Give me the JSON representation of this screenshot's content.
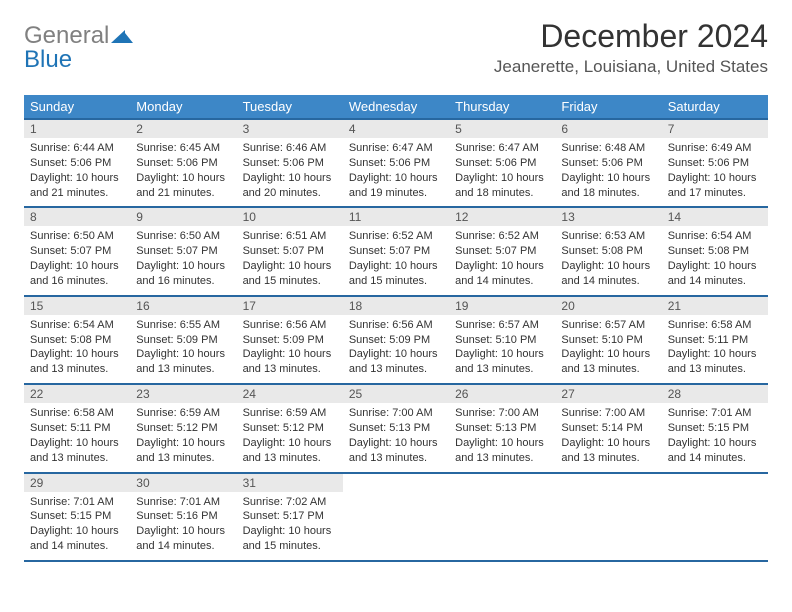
{
  "logo": {
    "line1": "General",
    "line2": "Blue"
  },
  "title": "December 2024",
  "location": "Jeanerette, Louisiana, United States",
  "colors": {
    "header_bg": "#3d87c7",
    "header_border": "#2767a0",
    "daynum_bg": "#e9e9e9",
    "text": "#333333",
    "logo_gray": "#808080",
    "logo_blue": "#1f74b6"
  },
  "weekdays": [
    "Sunday",
    "Monday",
    "Tuesday",
    "Wednesday",
    "Thursday",
    "Friday",
    "Saturday"
  ],
  "weeks": [
    [
      {
        "n": "1",
        "sr": "6:44 AM",
        "ss": "5:06 PM",
        "dl": "10 hours and 21 minutes."
      },
      {
        "n": "2",
        "sr": "6:45 AM",
        "ss": "5:06 PM",
        "dl": "10 hours and 21 minutes."
      },
      {
        "n": "3",
        "sr": "6:46 AM",
        "ss": "5:06 PM",
        "dl": "10 hours and 20 minutes."
      },
      {
        "n": "4",
        "sr": "6:47 AM",
        "ss": "5:06 PM",
        "dl": "10 hours and 19 minutes."
      },
      {
        "n": "5",
        "sr": "6:47 AM",
        "ss": "5:06 PM",
        "dl": "10 hours and 18 minutes."
      },
      {
        "n": "6",
        "sr": "6:48 AM",
        "ss": "5:06 PM",
        "dl": "10 hours and 18 minutes."
      },
      {
        "n": "7",
        "sr": "6:49 AM",
        "ss": "5:06 PM",
        "dl": "10 hours and 17 minutes."
      }
    ],
    [
      {
        "n": "8",
        "sr": "6:50 AM",
        "ss": "5:07 PM",
        "dl": "10 hours and 16 minutes."
      },
      {
        "n": "9",
        "sr": "6:50 AM",
        "ss": "5:07 PM",
        "dl": "10 hours and 16 minutes."
      },
      {
        "n": "10",
        "sr": "6:51 AM",
        "ss": "5:07 PM",
        "dl": "10 hours and 15 minutes."
      },
      {
        "n": "11",
        "sr": "6:52 AM",
        "ss": "5:07 PM",
        "dl": "10 hours and 15 minutes."
      },
      {
        "n": "12",
        "sr": "6:52 AM",
        "ss": "5:07 PM",
        "dl": "10 hours and 14 minutes."
      },
      {
        "n": "13",
        "sr": "6:53 AM",
        "ss": "5:08 PM",
        "dl": "10 hours and 14 minutes."
      },
      {
        "n": "14",
        "sr": "6:54 AM",
        "ss": "5:08 PM",
        "dl": "10 hours and 14 minutes."
      }
    ],
    [
      {
        "n": "15",
        "sr": "6:54 AM",
        "ss": "5:08 PM",
        "dl": "10 hours and 13 minutes."
      },
      {
        "n": "16",
        "sr": "6:55 AM",
        "ss": "5:09 PM",
        "dl": "10 hours and 13 minutes."
      },
      {
        "n": "17",
        "sr": "6:56 AM",
        "ss": "5:09 PM",
        "dl": "10 hours and 13 minutes."
      },
      {
        "n": "18",
        "sr": "6:56 AM",
        "ss": "5:09 PM",
        "dl": "10 hours and 13 minutes."
      },
      {
        "n": "19",
        "sr": "6:57 AM",
        "ss": "5:10 PM",
        "dl": "10 hours and 13 minutes."
      },
      {
        "n": "20",
        "sr": "6:57 AM",
        "ss": "5:10 PM",
        "dl": "10 hours and 13 minutes."
      },
      {
        "n": "21",
        "sr": "6:58 AM",
        "ss": "5:11 PM",
        "dl": "10 hours and 13 minutes."
      }
    ],
    [
      {
        "n": "22",
        "sr": "6:58 AM",
        "ss": "5:11 PM",
        "dl": "10 hours and 13 minutes."
      },
      {
        "n": "23",
        "sr": "6:59 AM",
        "ss": "5:12 PM",
        "dl": "10 hours and 13 minutes."
      },
      {
        "n": "24",
        "sr": "6:59 AM",
        "ss": "5:12 PM",
        "dl": "10 hours and 13 minutes."
      },
      {
        "n": "25",
        "sr": "7:00 AM",
        "ss": "5:13 PM",
        "dl": "10 hours and 13 minutes."
      },
      {
        "n": "26",
        "sr": "7:00 AM",
        "ss": "5:13 PM",
        "dl": "10 hours and 13 minutes."
      },
      {
        "n": "27",
        "sr": "7:00 AM",
        "ss": "5:14 PM",
        "dl": "10 hours and 13 minutes."
      },
      {
        "n": "28",
        "sr": "7:01 AM",
        "ss": "5:15 PM",
        "dl": "10 hours and 14 minutes."
      }
    ],
    [
      {
        "n": "29",
        "sr": "7:01 AM",
        "ss": "5:15 PM",
        "dl": "10 hours and 14 minutes."
      },
      {
        "n": "30",
        "sr": "7:01 AM",
        "ss": "5:16 PM",
        "dl": "10 hours and 14 minutes."
      },
      {
        "n": "31",
        "sr": "7:02 AM",
        "ss": "5:17 PM",
        "dl": "10 hours and 15 minutes."
      },
      null,
      null,
      null,
      null
    ]
  ],
  "labels": {
    "sunrise": "Sunrise:",
    "sunset": "Sunset:",
    "daylight": "Daylight:"
  }
}
